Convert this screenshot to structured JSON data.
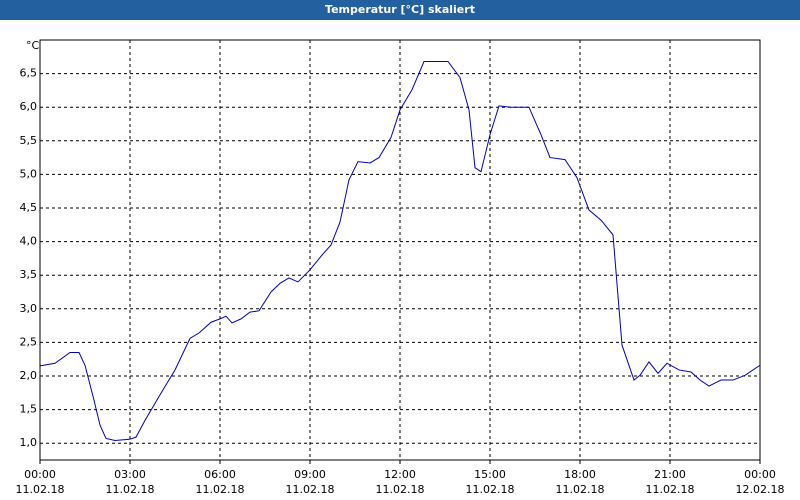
{
  "chart_data": {
    "type": "line",
    "title": "Temperatur [°C] skaliert",
    "y_label": "°C",
    "x": [
      0,
      0.5,
      1,
      1.3,
      1.5,
      1.8,
      2.0,
      2.2,
      2.5,
      3.0,
      3.2,
      3.5,
      4.0,
      4.5,
      5.0,
      5.3,
      5.7,
      6.0,
      6.2,
      6.4,
      6.7,
      7.0,
      7.3,
      7.7,
      8.0,
      8.3,
      8.6,
      9.0,
      9.4,
      9.7,
      10.0,
      10.3,
      10.6,
      11.0,
      11.3,
      11.7,
      12.0,
      12.4,
      12.8,
      13.2,
      13.6,
      14.0,
      14.3,
      14.5,
      14.7,
      15.0,
      15.3,
      15.7,
      16.3,
      16.7,
      17.0,
      17.5,
      17.9,
      18.3,
      18.7,
      19.1,
      19.4,
      19.8,
      20.0,
      20.3,
      20.6,
      20.9,
      21.3,
      21.7,
      22.0,
      22.3,
      22.7,
      23.1,
      23.5,
      24.0
    ],
    "series": [
      {
        "name": "Temperatur",
        "color": "#0000c0",
        "values": [
          2.15,
          2.19,
          2.35,
          2.35,
          2.16,
          1.64,
          1.27,
          1.07,
          1.04,
          1.06,
          1.09,
          1.34,
          1.72,
          2.09,
          2.56,
          2.64,
          2.8,
          2.85,
          2.89,
          2.79,
          2.85,
          2.95,
          2.97,
          3.25,
          3.38,
          3.46,
          3.4,
          3.58,
          3.8,
          3.95,
          4.29,
          4.92,
          5.19,
          5.17,
          5.25,
          5.55,
          5.96,
          6.26,
          6.68,
          6.68,
          6.68,
          6.44,
          5.96,
          5.1,
          5.04,
          5.59,
          6.02,
          6.0,
          6.0,
          5.59,
          5.25,
          5.22,
          4.95,
          4.47,
          4.32,
          4.1,
          2.46,
          1.94,
          2.01,
          2.21,
          2.04,
          2.19,
          2.09,
          2.06,
          1.94,
          1.85,
          1.94,
          1.94,
          2.01,
          2.16
        ]
      }
    ],
    "xlim": [
      0,
      24
    ],
    "xticks": [
      {
        "value": 0,
        "label": "00:00"
      },
      {
        "value": 3,
        "label": "03:00"
      },
      {
        "value": 6,
        "label": "06:00"
      },
      {
        "value": 9,
        "label": "09:00"
      },
      {
        "value": 12,
        "label": "12:00"
      },
      {
        "value": 15,
        "label": "15:00"
      },
      {
        "value": 18,
        "label": "18:00"
      },
      {
        "value": 21,
        "label": "21:00"
      },
      {
        "value": 24,
        "label": "00:00"
      }
    ],
    "xtick_dates": [
      "11.02.18",
      "11.02.18",
      "11.02.18",
      "11.02.18",
      "11.02.18",
      "11.02.18",
      "11.02.18",
      "11.02.18",
      "12.02.18"
    ],
    "ylim": [
      0.75,
      7.0
    ],
    "yticks": [
      {
        "value": 1.0,
        "label": "1,0"
      },
      {
        "value": 1.5,
        "label": "1,5"
      },
      {
        "value": 2.0,
        "label": "2,0"
      },
      {
        "value": 2.5,
        "label": "2,5"
      },
      {
        "value": 3.0,
        "label": "3,0"
      },
      {
        "value": 3.5,
        "label": "3,5"
      },
      {
        "value": 4.0,
        "label": "4,0"
      },
      {
        "value": 4.5,
        "label": "4,5"
      },
      {
        "value": 5.0,
        "label": "5,0"
      },
      {
        "value": 5.5,
        "label": "5,5"
      },
      {
        "value": 6.0,
        "label": "6,0"
      },
      {
        "value": 6.5,
        "label": "6,5"
      }
    ],
    "grid": true
  }
}
